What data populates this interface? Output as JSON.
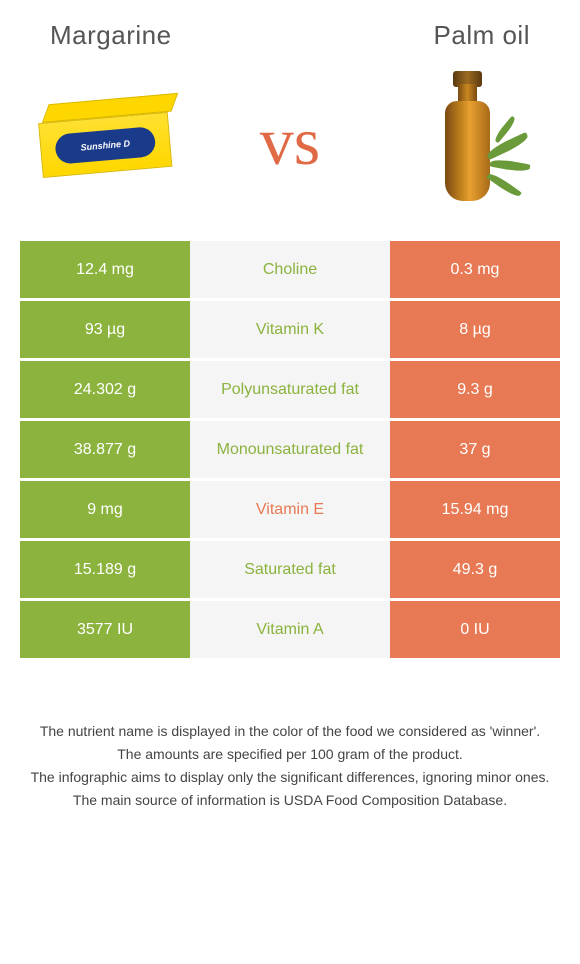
{
  "header": {
    "left_title": "Margarine",
    "right_title": "Palm oil"
  },
  "vs_label": "vs",
  "colors": {
    "left": "#8bb33e",
    "right": "#e77a54",
    "mid_bg": "#f5f5f5",
    "vs_text": "#e06a45"
  },
  "rows": [
    {
      "left": "12.4 mg",
      "name": "Choline",
      "right": "0.3 mg",
      "winner": "left"
    },
    {
      "left": "93 µg",
      "name": "Vitamin K",
      "right": "8 µg",
      "winner": "left"
    },
    {
      "left": "24.302 g",
      "name": "Polyunsaturated fat",
      "right": "9.3 g",
      "winner": "left"
    },
    {
      "left": "38.877 g",
      "name": "Monounsaturated fat",
      "right": "37 g",
      "winner": "left"
    },
    {
      "left": "9 mg",
      "name": "Vitamin E",
      "right": "15.94 mg",
      "winner": "right"
    },
    {
      "left": "15.189 g",
      "name": "Saturated fat",
      "right": "49.3 g",
      "winner": "left"
    },
    {
      "left": "3577 IU",
      "name": "Vitamin A",
      "right": "0 IU",
      "winner": "left"
    }
  ],
  "footer": {
    "line1": "The nutrient name is displayed in the color of the food we considered as 'winner'.",
    "line2": "The amounts are specified per 100 gram of the product.",
    "line3": "The infographic aims to display only the significant differences, ignoring minor ones.",
    "line4": "The main source of information is USDA Food Composition Database."
  },
  "margarine_box_label": "Sunshine D"
}
